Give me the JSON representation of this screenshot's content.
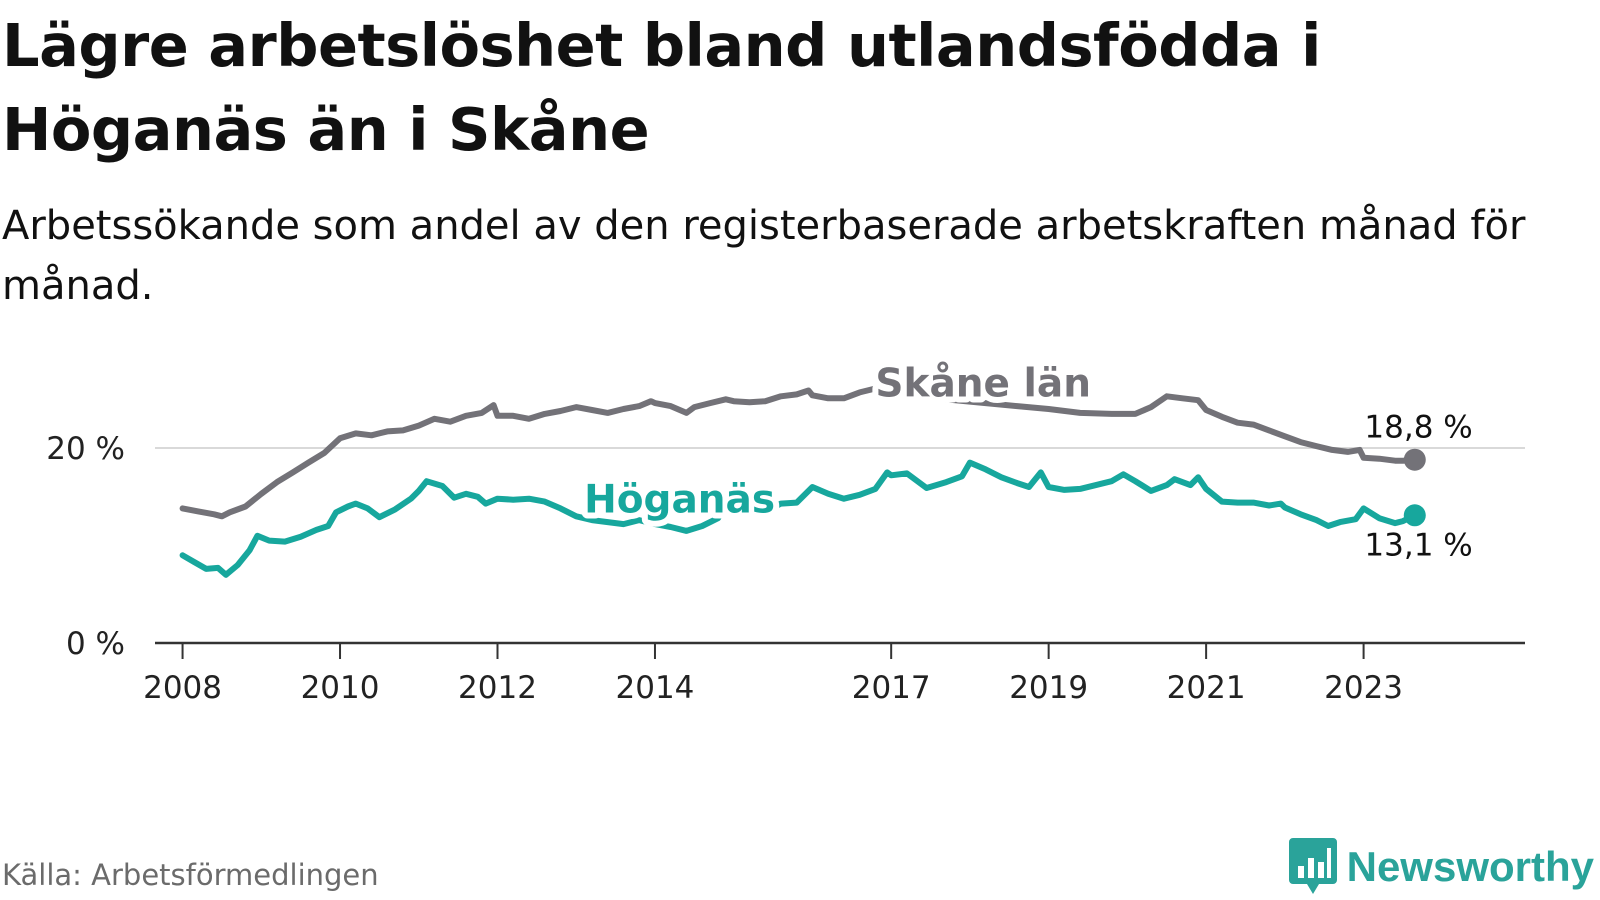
{
  "header": {
    "title": "Lägre arbetslöshet bland utlandsfödda i Höganäs än i Skåne",
    "subtitle": "Arbetssökande som andel av den registerbaserade arbetskraften månad för månad."
  },
  "footer": {
    "source": "Källa: Arbetsförmedlingen",
    "brand": "Newsworthy"
  },
  "colors": {
    "skane": "#737278",
    "hoganas": "#17a79d",
    "axis": "#333333",
    "grid": "#d9d9d9",
    "brand": "#2aa39a"
  },
  "chart_data": {
    "type": "line",
    "title": "Lägre arbetslöshet bland utlandsfödda i Höganäs än i Skåne",
    "xlabel": "",
    "ylabel": "",
    "ylim": [
      0,
      28
    ],
    "xlim": [
      2007.65,
      2025.05
    ],
    "y_ticks": [
      {
        "value": 0,
        "label": "0 %"
      },
      {
        "value": 20,
        "label": "20 %"
      }
    ],
    "x_ticks": [
      {
        "value": 2008,
        "label": "2008"
      },
      {
        "value": 2010,
        "label": "2010"
      },
      {
        "value": 2012,
        "label": "2012"
      },
      {
        "value": 2014,
        "label": "2014"
      },
      {
        "value": 2017,
        "label": "2017"
      },
      {
        "value": 2019,
        "label": "2019"
      },
      {
        "value": 2021,
        "label": "2021"
      },
      {
        "value": 2023,
        "label": "2023"
      }
    ],
    "grid": "horizontal at 20",
    "series": [
      {
        "name": "Skåne län",
        "label": "Skåne län",
        "end_label": "18,8 %",
        "end_value": 18.8,
        "label_at": 2016.8,
        "points": [
          [
            2008.0,
            13.8
          ],
          [
            2008.2,
            13.5
          ],
          [
            2008.4,
            13.2
          ],
          [
            2008.5,
            13.0
          ],
          [
            2008.6,
            13.4
          ],
          [
            2008.8,
            14.0
          ],
          [
            2009.0,
            15.3
          ],
          [
            2009.2,
            16.5
          ],
          [
            2009.4,
            17.5
          ],
          [
            2009.6,
            18.5
          ],
          [
            2009.8,
            19.5
          ],
          [
            2010.0,
            21.0
          ],
          [
            2010.2,
            21.5
          ],
          [
            2010.4,
            21.3
          ],
          [
            2010.6,
            21.7
          ],
          [
            2010.8,
            21.8
          ],
          [
            2011.0,
            22.3
          ],
          [
            2011.2,
            23.0
          ],
          [
            2011.4,
            22.7
          ],
          [
            2011.6,
            23.3
          ],
          [
            2011.8,
            23.6
          ],
          [
            2011.95,
            24.4
          ],
          [
            2012.0,
            23.3
          ],
          [
            2012.2,
            23.3
          ],
          [
            2012.4,
            23.0
          ],
          [
            2012.6,
            23.5
          ],
          [
            2012.8,
            23.8
          ],
          [
            2013.0,
            24.2
          ],
          [
            2013.2,
            23.9
          ],
          [
            2013.4,
            23.6
          ],
          [
            2013.6,
            24.0
          ],
          [
            2013.8,
            24.3
          ],
          [
            2013.95,
            24.8
          ],
          [
            2014.0,
            24.6
          ],
          [
            2014.2,
            24.3
          ],
          [
            2014.4,
            23.6
          ],
          [
            2014.5,
            24.2
          ],
          [
            2014.7,
            24.6
          ],
          [
            2014.9,
            25.0
          ],
          [
            2015.0,
            24.8
          ],
          [
            2015.2,
            24.7
          ],
          [
            2015.4,
            24.8
          ],
          [
            2015.6,
            25.3
          ],
          [
            2015.8,
            25.5
          ],
          [
            2015.95,
            25.9
          ],
          [
            2016.0,
            25.4
          ],
          [
            2016.2,
            25.1
          ],
          [
            2016.4,
            25.1
          ],
          [
            2016.6,
            25.7
          ],
          [
            2016.8,
            26.1
          ],
          [
            2017.0,
            25.5
          ],
          [
            2017.2,
            25.9
          ],
          [
            2017.5,
            25.2
          ],
          [
            2017.8,
            24.9
          ],
          [
            2018.2,
            24.6
          ],
          [
            2018.6,
            24.3
          ],
          [
            2019.0,
            24.0
          ],
          [
            2019.4,
            23.6
          ],
          [
            2019.8,
            23.5
          ],
          [
            2020.1,
            23.5
          ],
          [
            2020.3,
            24.2
          ],
          [
            2020.5,
            25.3
          ],
          [
            2020.7,
            25.1
          ],
          [
            2020.9,
            24.9
          ],
          [
            2021.0,
            23.9
          ],
          [
            2021.2,
            23.2
          ],
          [
            2021.4,
            22.6
          ],
          [
            2021.6,
            22.4
          ],
          [
            2021.8,
            21.8
          ],
          [
            2022.0,
            21.2
          ],
          [
            2022.2,
            20.6
          ],
          [
            2022.4,
            20.2
          ],
          [
            2022.6,
            19.8
          ],
          [
            2022.8,
            19.6
          ],
          [
            2022.95,
            19.8
          ],
          [
            2023.0,
            19.0
          ],
          [
            2023.2,
            18.9
          ],
          [
            2023.4,
            18.7
          ],
          [
            2023.5,
            18.7
          ],
          [
            2023.65,
            18.8
          ]
        ]
      },
      {
        "name": "Höganäs",
        "label": "Höganäs",
        "end_label": "13,1 %",
        "end_value": 13.1,
        "label_at": 2013.1,
        "points": [
          [
            2008.0,
            9.0
          ],
          [
            2008.15,
            8.3
          ],
          [
            2008.3,
            7.6
          ],
          [
            2008.45,
            7.7
          ],
          [
            2008.55,
            7.0
          ],
          [
            2008.7,
            8.0
          ],
          [
            2008.85,
            9.5
          ],
          [
            2008.95,
            11.0
          ],
          [
            2009.1,
            10.5
          ],
          [
            2009.3,
            10.4
          ],
          [
            2009.5,
            10.9
          ],
          [
            2009.7,
            11.6
          ],
          [
            2009.85,
            12.0
          ],
          [
            2009.95,
            13.4
          ],
          [
            2010.1,
            14.0
          ],
          [
            2010.2,
            14.3
          ],
          [
            2010.35,
            13.8
          ],
          [
            2010.5,
            12.9
          ],
          [
            2010.7,
            13.7
          ],
          [
            2010.9,
            14.8
          ],
          [
            2011.0,
            15.6
          ],
          [
            2011.1,
            16.6
          ],
          [
            2011.3,
            16.1
          ],
          [
            2011.45,
            14.9
          ],
          [
            2011.6,
            15.3
          ],
          [
            2011.75,
            15.0
          ],
          [
            2011.85,
            14.3
          ],
          [
            2012.0,
            14.8
          ],
          [
            2012.2,
            14.7
          ],
          [
            2012.4,
            14.8
          ],
          [
            2012.6,
            14.5
          ],
          [
            2012.8,
            13.8
          ],
          [
            2013.0,
            13.0
          ],
          [
            2013.2,
            12.6
          ],
          [
            2013.4,
            12.4
          ],
          [
            2013.6,
            12.2
          ],
          [
            2013.8,
            12.6
          ],
          [
            2014.0,
            12.2
          ],
          [
            2014.2,
            11.9
          ],
          [
            2014.4,
            11.5
          ],
          [
            2014.6,
            12.0
          ],
          [
            2014.8,
            12.8
          ],
          [
            2014.9,
            14.0
          ],
          [
            2015.0,
            13.4
          ],
          [
            2015.2,
            13.4
          ],
          [
            2015.4,
            13.5
          ],
          [
            2015.6,
            14.3
          ],
          [
            2015.8,
            14.4
          ],
          [
            2016.0,
            16.0
          ],
          [
            2016.2,
            15.3
          ],
          [
            2016.4,
            14.8
          ],
          [
            2016.6,
            15.2
          ],
          [
            2016.8,
            15.8
          ],
          [
            2016.95,
            17.5
          ],
          [
            2017.0,
            17.2
          ],
          [
            2017.2,
            17.4
          ],
          [
            2017.45,
            15.9
          ],
          [
            2017.7,
            16.5
          ],
          [
            2017.9,
            17.1
          ],
          [
            2018.0,
            18.5
          ],
          [
            2018.2,
            17.8
          ],
          [
            2018.4,
            17.0
          ],
          [
            2018.6,
            16.4
          ],
          [
            2018.75,
            16.0
          ],
          [
            2018.9,
            17.5
          ],
          [
            2019.0,
            16.0
          ],
          [
            2019.2,
            15.7
          ],
          [
            2019.4,
            15.8
          ],
          [
            2019.6,
            16.2
          ],
          [
            2019.8,
            16.6
          ],
          [
            2019.95,
            17.3
          ],
          [
            2020.1,
            16.6
          ],
          [
            2020.3,
            15.6
          ],
          [
            2020.5,
            16.2
          ],
          [
            2020.6,
            16.8
          ],
          [
            2020.8,
            16.2
          ],
          [
            2020.9,
            17.0
          ],
          [
            2021.0,
            15.8
          ],
          [
            2021.2,
            14.5
          ],
          [
            2021.4,
            14.4
          ],
          [
            2021.6,
            14.4
          ],
          [
            2021.8,
            14.1
          ],
          [
            2021.95,
            14.3
          ],
          [
            2022.0,
            13.9
          ],
          [
            2022.2,
            13.2
          ],
          [
            2022.4,
            12.6
          ],
          [
            2022.55,
            12.0
          ],
          [
            2022.7,
            12.4
          ],
          [
            2022.9,
            12.7
          ],
          [
            2023.0,
            13.8
          ],
          [
            2023.2,
            12.8
          ],
          [
            2023.4,
            12.3
          ],
          [
            2023.5,
            12.5
          ],
          [
            2023.65,
            13.1
          ]
        ]
      }
    ]
  }
}
